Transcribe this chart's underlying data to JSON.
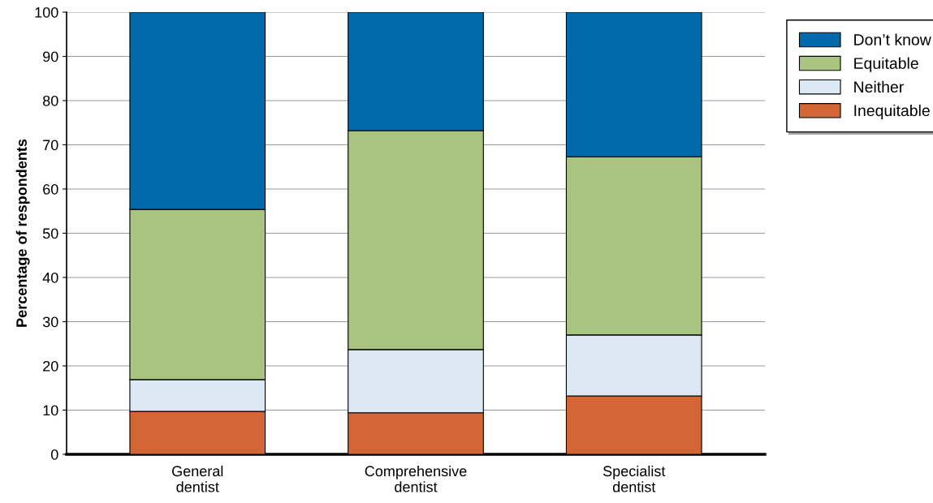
{
  "chart_data": {
    "type": "bar",
    "stacked": true,
    "ylabel": "Percentage of respondents",
    "categories": [
      "General\ndentist",
      "Comprehensive\ndentist",
      "Specialist\ndentist"
    ],
    "series": [
      {
        "name": "Inequitable",
        "color": "#d46534",
        "values": [
          9.7,
          9.4,
          13.2
        ]
      },
      {
        "name": "Neither",
        "color": "#dce8f4",
        "values": [
          7.2,
          14.3,
          13.8
        ]
      },
      {
        "name": "Equitable",
        "color": "#a9c47f",
        "values": [
          38.5,
          49.5,
          40.3
        ]
      },
      {
        "name": "Don’t know",
        "color": "#006aab",
        "values": [
          44.6,
          26.8,
          32.7
        ]
      }
    ],
    "ylim": [
      0,
      100
    ],
    "yticks": [
      0,
      10,
      20,
      30,
      40,
      50,
      60,
      70,
      80,
      90,
      100
    ],
    "grid": "y",
    "legend": "top right"
  }
}
